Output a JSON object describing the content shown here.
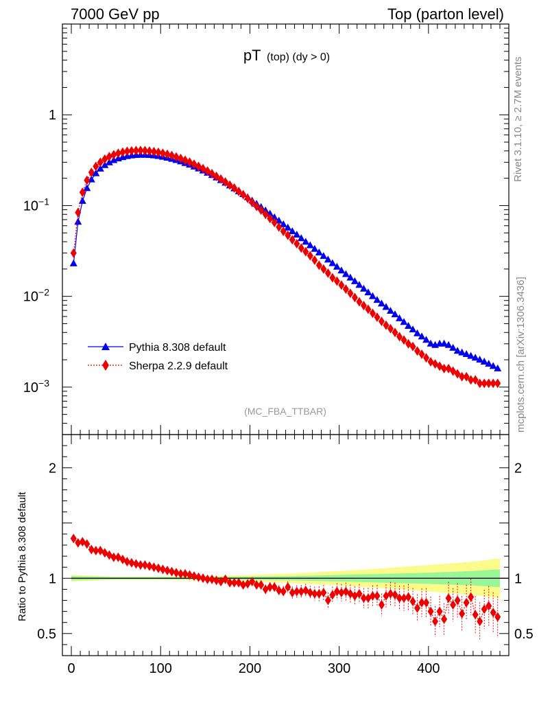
{
  "header": {
    "left": "7000 GeV pp",
    "right": "Top (parton level)"
  },
  "title": {
    "main": "pT",
    "sub": "(top) (dy > 0)"
  },
  "side_labels": {
    "rivet": "Rivet 3.1.10, ≥ 2.7M events",
    "mcplots": "mcplots.cern.ch [arXiv:1306.3436]"
  },
  "analysis": "(MC_FBA_TTBAR)",
  "legend": [
    {
      "label": "Pythia 8.308 default",
      "color": "#0000ee",
      "marker": "triangle"
    },
    {
      "label": "Sherpa 2.2.9 default",
      "color": "#ee0000",
      "marker": "diamond"
    }
  ],
  "ratio_ylabel": "Ratio to Pythia 8.308 default",
  "chart_data": [
    {
      "type": "line",
      "scale": "log",
      "xlim": [
        -10,
        490
      ],
      "ylim": [
        0.0003,
        10
      ],
      "yticks": [
        {
          "value": 1,
          "label": "1"
        },
        {
          "value": 0.1,
          "label": "10",
          "exp": "−1"
        },
        {
          "value": 0.01,
          "label": "10",
          "exp": "−2"
        },
        {
          "value": 0.001,
          "label": "10",
          "exp": "−3"
        }
      ],
      "series": [
        {
          "name": "Pythia 8.308 default",
          "color": "#0000ee",
          "x": [
            2.5,
            7.5,
            12.5,
            17.5,
            22.5,
            27.5,
            32.5,
            37.5,
            42.5,
            47.5,
            52.5,
            57.5,
            62.5,
            67.5,
            72.5,
            77.5,
            82.5,
            87.5,
            92.5,
            97.5,
            102.5,
            107.5,
            112.5,
            117.5,
            122.5,
            127.5,
            132.5,
            137.5,
            142.5,
            147.5,
            152.5,
            157.5,
            162.5,
            167.5,
            172.5,
            177.5,
            182.5,
            187.5,
            192.5,
            197.5,
            202.5,
            207.5,
            212.5,
            217.5,
            222.5,
            227.5,
            232.5,
            237.5,
            242.5,
            247.5,
            252.5,
            257.5,
            262.5,
            267.5,
            272.5,
            277.5,
            282.5,
            287.5,
            292.5,
            297.5,
            302.5,
            307.5,
            312.5,
            317.5,
            322.5,
            327.5,
            332.5,
            337.5,
            342.5,
            347.5,
            352.5,
            357.5,
            362.5,
            367.5,
            372.5,
            377.5,
            382.5,
            387.5,
            392.5,
            397.5,
            402.5,
            407.5,
            412.5,
            417.5,
            422.5,
            427.5,
            432.5,
            437.5,
            442.5,
            447.5,
            452.5,
            457.5,
            462.5,
            467.5,
            472.5,
            477.5
          ],
          "y": [
            0.023,
            0.066,
            0.112,
            0.155,
            0.193,
            0.226,
            0.254,
            0.278,
            0.298,
            0.315,
            0.329,
            0.34,
            0.349,
            0.355,
            0.359,
            0.361,
            0.361,
            0.359,
            0.355,
            0.35,
            0.343,
            0.335,
            0.326,
            0.316,
            0.305,
            0.293,
            0.281,
            0.268,
            0.255,
            0.242,
            0.229,
            0.216,
            0.203,
            0.19,
            0.178,
            0.166,
            0.154,
            0.143,
            0.133,
            0.123,
            0.113,
            0.104,
            0.096,
            0.088,
            0.081,
            0.074,
            0.068,
            0.062,
            0.057,
            0.052,
            0.0476,
            0.0435,
            0.0398,
            0.0364,
            0.0332,
            0.0303,
            0.0277,
            0.0253,
            0.0231,
            0.0211,
            0.0192,
            0.0175,
            0.016,
            0.0146,
            0.0133,
            0.0121,
            0.011,
            0.01,
            0.0091,
            0.0083,
            0.0076,
            0.0069,
            0.0063,
            0.0057,
            0.0052,
            0.0047,
            0.0043,
            0.0039,
            0.0036,
            0.0033,
            0.003,
            0.0029,
            0.003,
            0.003,
            0.0029,
            0.0027,
            0.0025,
            0.0024,
            0.0023,
            0.0022,
            0.0021,
            0.002,
            0.0019,
            0.0018,
            0.0017,
            0.0016
          ]
        },
        {
          "name": "Sherpa 2.2.9 default",
          "color": "#ee0000",
          "x": [
            2.5,
            7.5,
            12.5,
            17.5,
            22.5,
            27.5,
            32.5,
            37.5,
            42.5,
            47.5,
            52.5,
            57.5,
            62.5,
            67.5,
            72.5,
            77.5,
            82.5,
            87.5,
            92.5,
            97.5,
            102.5,
            107.5,
            112.5,
            117.5,
            122.5,
            127.5,
            132.5,
            137.5,
            142.5,
            147.5,
            152.5,
            157.5,
            162.5,
            167.5,
            172.5,
            177.5,
            182.5,
            187.5,
            192.5,
            197.5,
            202.5,
            207.5,
            212.5,
            217.5,
            222.5,
            227.5,
            232.5,
            237.5,
            242.5,
            247.5,
            252.5,
            257.5,
            262.5,
            267.5,
            272.5,
            277.5,
            282.5,
            287.5,
            292.5,
            297.5,
            302.5,
            307.5,
            312.5,
            317.5,
            322.5,
            327.5,
            332.5,
            337.5,
            342.5,
            347.5,
            352.5,
            357.5,
            362.5,
            367.5,
            372.5,
            377.5,
            382.5,
            387.5,
            392.5,
            397.5,
            402.5,
            407.5,
            412.5,
            417.5,
            422.5,
            427.5,
            432.5,
            437.5,
            442.5,
            447.5,
            452.5,
            457.5,
            462.5,
            467.5,
            472.5,
            477.5
          ],
          "y": [
            0.03,
            0.084,
            0.14,
            0.19,
            0.232,
            0.27,
            0.3,
            0.325,
            0.346,
            0.363,
            0.377,
            0.388,
            0.396,
            0.401,
            0.404,
            0.405,
            0.403,
            0.399,
            0.393,
            0.386,
            0.377,
            0.367,
            0.356,
            0.343,
            0.33,
            0.316,
            0.301,
            0.286,
            0.27,
            0.255,
            0.24,
            0.225,
            0.21,
            0.196,
            0.182,
            0.168,
            0.156,
            0.143,
            0.132,
            0.12,
            0.108,
            0.098,
            0.089,
            0.08,
            0.072,
            0.065,
            0.058,
            0.052,
            0.047,
            0.042,
            0.038,
            0.034,
            0.031,
            0.028,
            0.025,
            0.022,
            0.02,
            0.018,
            0.016,
            0.0147,
            0.0133,
            0.012,
            0.0108,
            0.0097,
            0.0087,
            0.0079,
            0.0072,
            0.0065,
            0.0059,
            0.0053,
            0.0048,
            0.0044,
            0.004,
            0.0036,
            0.0033,
            0.003,
            0.0028,
            0.0025,
            0.0023,
            0.0021,
            0.0019,
            0.0018,
            0.0017,
            0.0016,
            0.0016,
            0.0015,
            0.0014,
            0.0013,
            0.0013,
            0.0012,
            0.0012,
            0.0011,
            0.0011,
            0.0011,
            0.0011,
            0.0011
          ]
        }
      ]
    },
    {
      "type": "line",
      "scale": "linear",
      "xlabel": "",
      "ylabel": "Ratio to Pythia 8.308 default",
      "xlim": [
        -10,
        490
      ],
      "ylim": [
        0.3,
        2.3
      ],
      "yticks": [
        {
          "value": 0.5,
          "label": "0.5"
        },
        {
          "value": 1,
          "label": "1"
        },
        {
          "value": 2,
          "label": "2"
        }
      ],
      "xticks": [
        {
          "value": 0,
          "label": "0"
        },
        {
          "value": 100,
          "label": "100"
        },
        {
          "value": 200,
          "label": "200"
        },
        {
          "value": 300,
          "label": "300"
        },
        {
          "value": 400,
          "label": "400"
        }
      ],
      "reference": 1,
      "bands": {
        "x": [
          0,
          50,
          100,
          150,
          200,
          250,
          300,
          350,
          400,
          450,
          480
        ],
        "inner_halfwidth": [
          0.02,
          0.01,
          0.01,
          0.012,
          0.015,
          0.02,
          0.03,
          0.04,
          0.05,
          0.065,
          0.08
        ],
        "outer_halfwidth": [
          0.03,
          0.015,
          0.015,
          0.02,
          0.03,
          0.045,
          0.065,
          0.09,
          0.12,
          0.15,
          0.18
        ],
        "inner_color": "#98f598",
        "outer_color": "#fbfb8c"
      },
      "series": [
        {
          "name": "Sherpa 2.2.9 default",
          "color": "#ee0000",
          "x": [
            2.5,
            7.5,
            12.5,
            17.5,
            22.5,
            27.5,
            32.5,
            37.5,
            42.5,
            47.5,
            52.5,
            57.5,
            62.5,
            67.5,
            72.5,
            77.5,
            82.5,
            87.5,
            92.5,
            97.5,
            102.5,
            107.5,
            112.5,
            117.5,
            122.5,
            127.5,
            132.5,
            137.5,
            142.5,
            147.5,
            152.5,
            157.5,
            162.5,
            167.5,
            172.5,
            177.5,
            182.5,
            187.5,
            192.5,
            197.5,
            202.5,
            207.5,
            212.5,
            217.5,
            222.5,
            227.5,
            232.5,
            237.5,
            242.5,
            247.5,
            252.5,
            257.5,
            262.5,
            267.5,
            272.5,
            277.5,
            282.5,
            287.5,
            292.5,
            297.5,
            302.5,
            307.5,
            312.5,
            317.5,
            322.5,
            327.5,
            332.5,
            337.5,
            342.5,
            347.5,
            352.5,
            357.5,
            362.5,
            367.5,
            372.5,
            377.5,
            382.5,
            387.5,
            392.5,
            397.5,
            402.5,
            407.5,
            412.5,
            417.5,
            422.5,
            427.5,
            432.5,
            437.5,
            442.5,
            447.5,
            452.5,
            457.5,
            462.5,
            467.5,
            472.5,
            477.5
          ],
          "y": [
            1.36,
            1.32,
            1.33,
            1.31,
            1.26,
            1.25,
            1.25,
            1.23,
            1.21,
            1.19,
            1.19,
            1.17,
            1.15,
            1.14,
            1.13,
            1.12,
            1.12,
            1.11,
            1.1,
            1.09,
            1.08,
            1.07,
            1.06,
            1.05,
            1.04,
            1.04,
            1.03,
            1.02,
            1.01,
            1.0,
            0.99,
            0.99,
            0.98,
            0.97,
            0.99,
            0.96,
            0.96,
            0.96,
            0.94,
            0.95,
            0.97,
            0.94,
            0.94,
            0.9,
            0.92,
            0.92,
            0.89,
            0.88,
            0.92,
            0.87,
            0.88,
            0.88,
            0.89,
            0.87,
            0.86,
            0.86,
            0.87,
            0.8,
            0.85,
            0.88,
            0.87,
            0.88,
            0.86,
            0.84,
            0.86,
            0.82,
            0.82,
            0.84,
            0.84,
            0.76,
            0.84,
            0.86,
            0.85,
            0.82,
            0.82,
            0.83,
            0.79,
            0.73,
            0.78,
            0.78,
            0.7,
            0.61,
            0.7,
            0.63,
            0.82,
            0.76,
            0.8,
            0.68,
            0.78,
            0.83,
            0.67,
            0.61,
            0.72,
            0.75,
            0.69,
            0.65
          ]
        }
      ]
    }
  ]
}
